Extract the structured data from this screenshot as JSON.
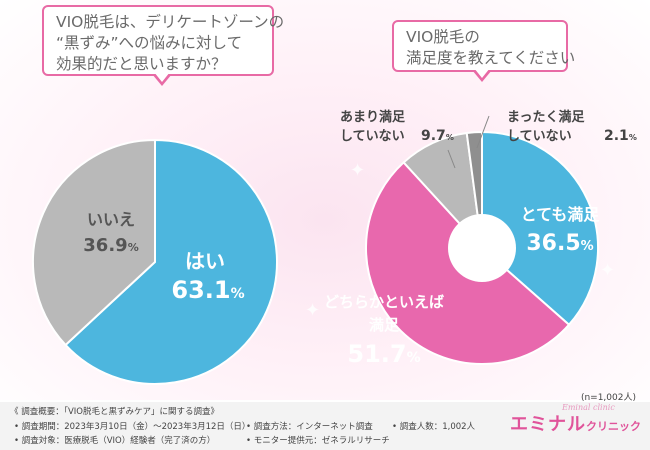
{
  "chart_data": [
    {
      "type": "pie",
      "title": "VIO脱毛は、デリケートゾーンの“黒ずみ”への悩みに対して効果的だと思いますか？",
      "title_lines": [
        "VIO脱毛は、デリケートゾーンの",
        "“黒ずみ”への悩みに対して",
        "効果的だと思いますか？"
      ],
      "slices": [
        {
          "label": "はい",
          "value": 63.1,
          "value_text": "63.1%",
          "color": "#4db6de"
        },
        {
          "label": "いいえ",
          "value": 36.9,
          "value_text": "36.9%",
          "color": "#b9b9b9"
        }
      ]
    },
    {
      "type": "pie",
      "subtype": "donut",
      "title": "VIO脱毛の満足度を教えてください",
      "title_lines": [
        "VIO脱毛の",
        "満足度を教えてください"
      ],
      "slices": [
        {
          "label": "とても満足",
          "value": 36.5,
          "value_text": "36.5%",
          "color": "#4db6de"
        },
        {
          "label": "どちらかといえば満足",
          "label_lines": [
            "どちらかといえば",
            "満足"
          ],
          "value": 51.7,
          "value_text": "51.7%",
          "color": "#e868ad"
        },
        {
          "label": "あまり満足していない",
          "label_lines": [
            "あまり満足",
            "していない"
          ],
          "value": 9.7,
          "value_text": "9.7%",
          "color": "#b9b9b9"
        },
        {
          "label": "まったく満足していない",
          "label_lines": [
            "まったく満足",
            "していない"
          ],
          "value": 2.1,
          "value_text": "2.1%",
          "color": "#8f8f8f"
        }
      ]
    }
  ],
  "sample_size": "(n=1,002人)",
  "footer": {
    "summary": "《 調査概要：「VIO脱毛と黒ずみケア」に関する調査》",
    "period": "• 調査期間：2023年3月10日（金）〜2023年3月12日（日）",
    "target": "• 調査対象：医療脱毛（VIO）経験者（完了済の方）",
    "method": "• 調査方法：インターネット調査",
    "monitor": "• モニター提供元：ゼネラルリサーチ",
    "count": "• 調査人数：1,002人"
  },
  "logo": {
    "main": "エミナル",
    "sub": "クリニック",
    "script": "Eminal clinic"
  }
}
